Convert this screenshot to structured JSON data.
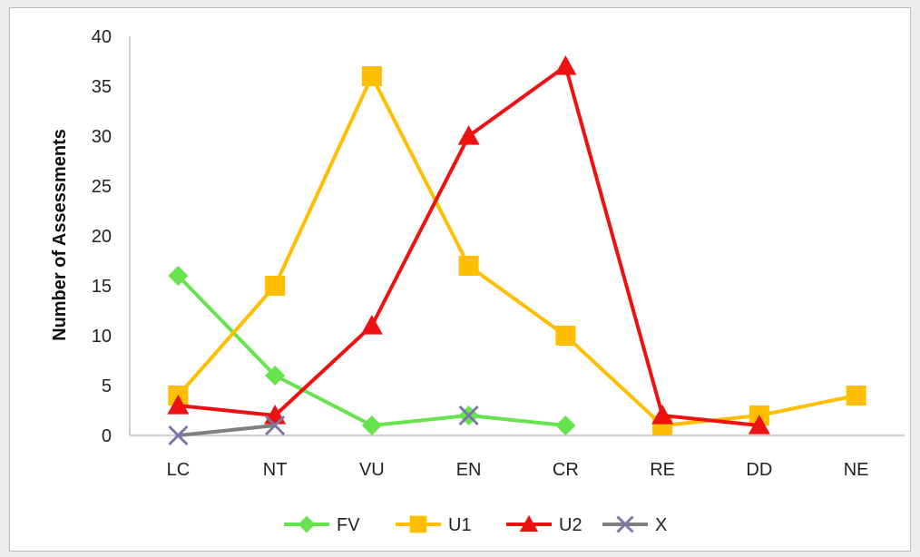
{
  "chart_data": {
    "type": "line",
    "title": "",
    "xlabel": "",
    "ylabel": "Number of Assessments",
    "categories": [
      "LC",
      "NT",
      "VU",
      "EN",
      "CR",
      "RE",
      "DD",
      "NE"
    ],
    "ylim": [
      0,
      40
    ],
    "yticks": [
      0,
      5,
      10,
      15,
      20,
      25,
      30,
      35,
      40
    ],
    "grid": false,
    "legend": "bottom",
    "series": [
      {
        "name": "FV",
        "color": "#66e34d",
        "marker": "diamond",
        "values": [
          16,
          6,
          1,
          2,
          1,
          null,
          null,
          null
        ]
      },
      {
        "name": "U1",
        "color": "#ffbf00",
        "marker": "square",
        "values": [
          4,
          15,
          36,
          17,
          10,
          1,
          2,
          4
        ]
      },
      {
        "name": "U2",
        "color": "#ee1111",
        "marker": "triangle",
        "values": [
          3,
          2,
          11,
          30,
          37,
          2,
          1,
          null
        ]
      },
      {
        "name": "X",
        "color": "#7f7f7f",
        "marker": "x",
        "marker_color": "#7a78a8",
        "values": [
          0,
          1,
          null,
          2,
          null,
          null,
          null,
          null
        ]
      }
    ]
  }
}
